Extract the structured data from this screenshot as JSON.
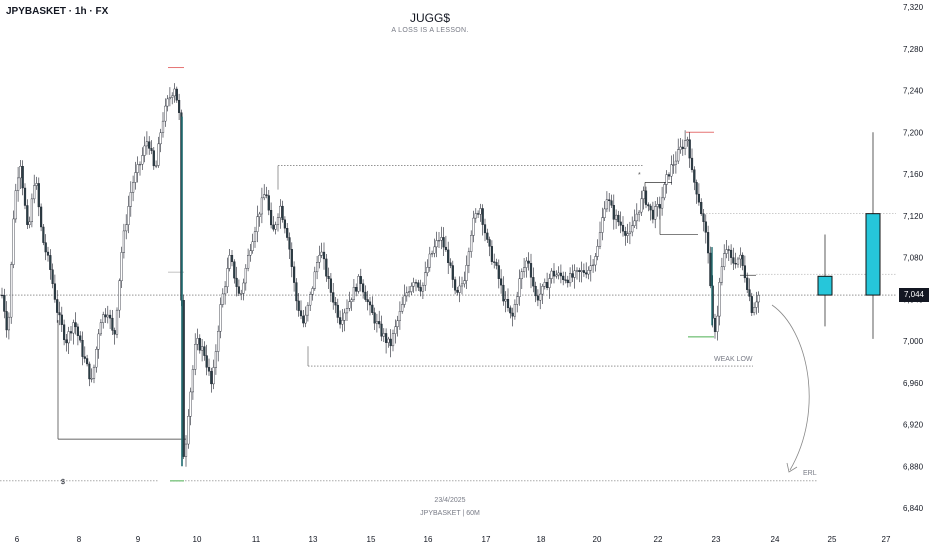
{
  "header": {
    "symbol": "JPYBASKET · 1h · FX",
    "title": "JUGG$",
    "subtitle": "A LOSS IS A LESSON.",
    "date": "23/4/2025",
    "footer": "JPYBASKET | 60M"
  },
  "price_badge": "7,044",
  "colors": {
    "candle_up": "#ffffff",
    "candle_down": "#2a3e45",
    "wick": "#1e222d",
    "teal_line": "#1e6b6f",
    "projection": "#26c6da",
    "high_marker": "#e57373",
    "low_marker": "#4caf50"
  },
  "chart_data": {
    "type": "candlestick",
    "y_ticks": [
      "7,320",
      "7,280",
      "7,240",
      "7,200",
      "7,160",
      "7,120",
      "7,080",
      "7,040",
      "7,000",
      "6,960",
      "6,920",
      "6,880",
      "6,840"
    ],
    "ylim": [
      6840,
      7320
    ],
    "x_ticks": [
      "6",
      "8",
      "9",
      "10",
      "11",
      "13",
      "15",
      "16",
      "17",
      "18",
      "20",
      "22",
      "23",
      "24",
      "25",
      "27"
    ],
    "current_price": 7044,
    "annotations": {
      "weak_low": "WEAK LOW",
      "erl": "ERL",
      "liquidity_symbol": "$",
      "star": "*"
    },
    "levels": {
      "upper_range": 7168,
      "weak_low": 6976,
      "erl": 6866,
      "bos_low": 6906
    },
    "projection_candles": [
      {
        "label": "25",
        "open": 7044,
        "close": 7062,
        "high": 7102,
        "low": 7014
      },
      {
        "label": "27",
        "open": 7044,
        "close": 7122,
        "high": 7200,
        "low": 7002
      }
    ]
  }
}
